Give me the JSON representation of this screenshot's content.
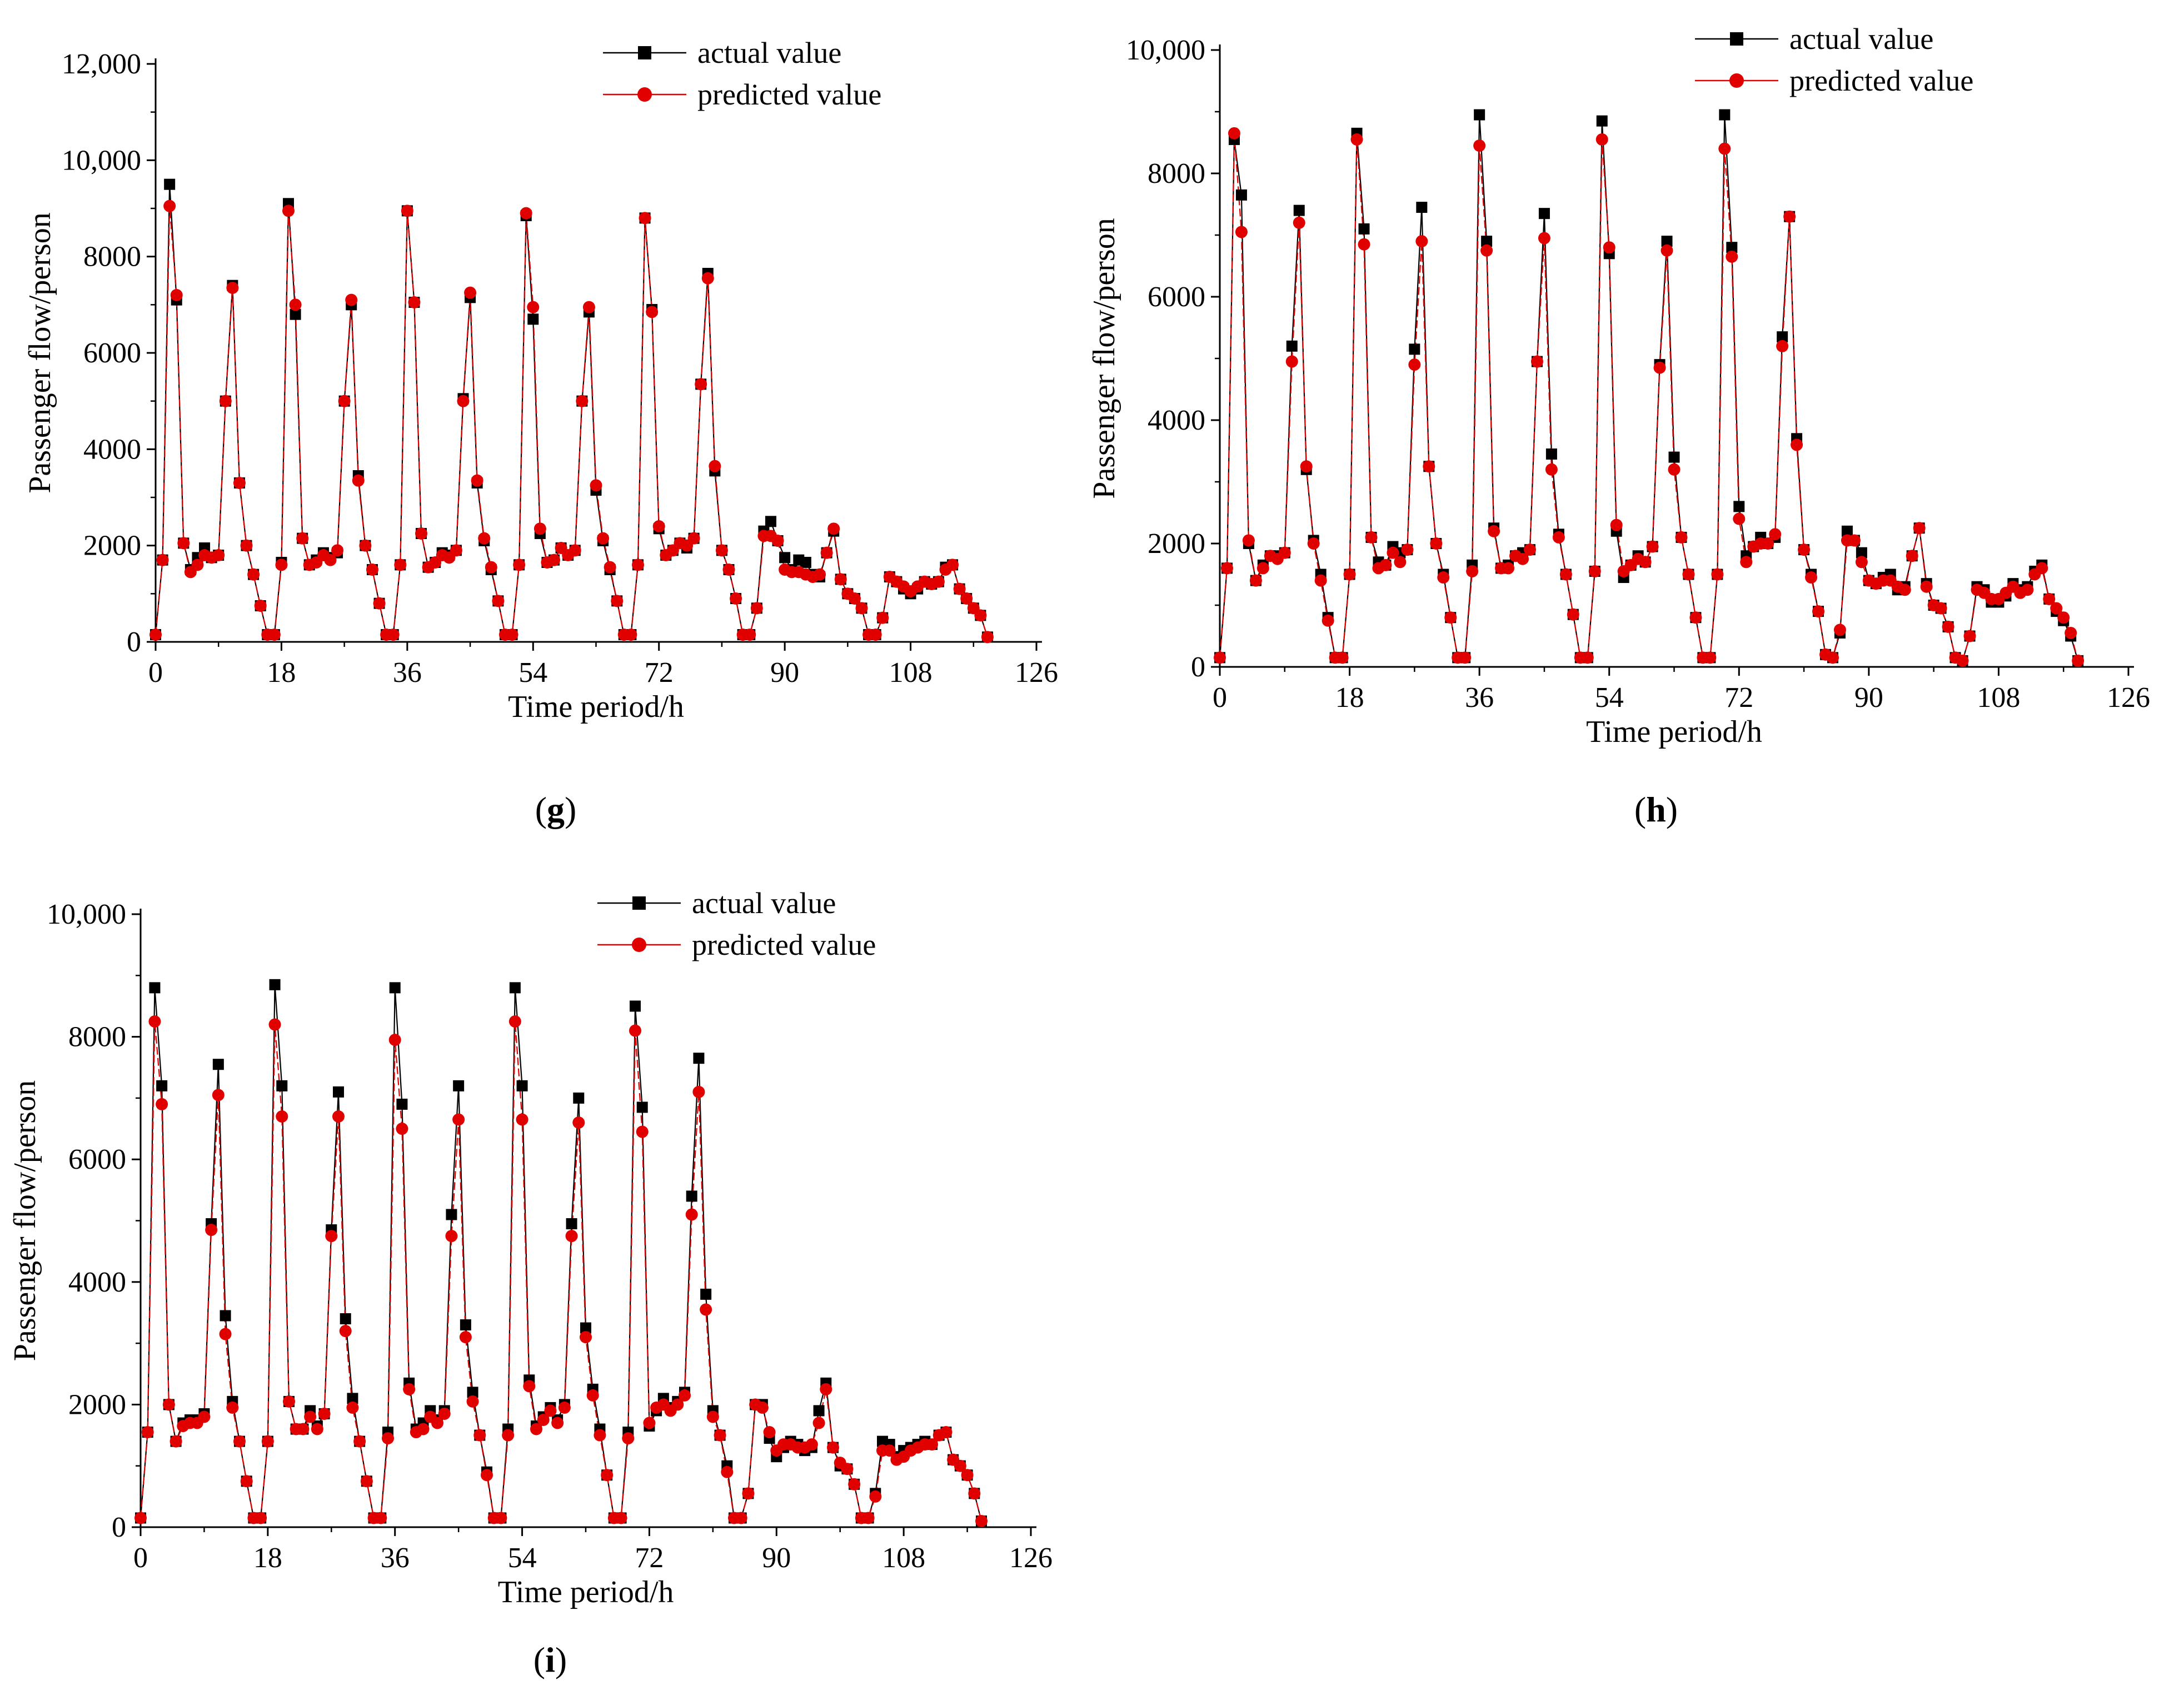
{
  "colors": {
    "actual": "#000000",
    "predicted": "#e00000",
    "axis": "#000000"
  },
  "chart_data": [
    {
      "id": "g",
      "panel_label": "g",
      "type": "line",
      "xlabel": "Time period/h",
      "ylabel": "Passenger flow/person",
      "xlim": [
        0,
        126
      ],
      "ylim": [
        0,
        12000
      ],
      "xticks": [
        0,
        18,
        36,
        54,
        72,
        90,
        108,
        126
      ],
      "xtick_labels": [
        "0",
        "18",
        "36",
        "54",
        "72",
        "90",
        "108",
        "126"
      ],
      "yticks": [
        0,
        2000,
        4000,
        6000,
        8000,
        10000,
        12000
      ],
      "ytick_labels": [
        "0",
        "2000",
        "4000",
        "6000",
        "8000",
        "10,000",
        "12,000"
      ],
      "legend": [
        "actual value",
        "predicted value"
      ],
      "legend_position": "top-right",
      "series": [
        {
          "name": "actual value",
          "marker": "square",
          "values": [
            150,
            1700,
            9500,
            7100,
            2050,
            1500,
            1750,
            1950,
            1750,
            1800,
            5000,
            7400,
            3300,
            2000,
            1400,
            750,
            150,
            150,
            1650,
            9100,
            6800,
            2150,
            1600,
            1700,
            1850,
            1750,
            1850,
            5000,
            7000,
            3450,
            2000,
            1500,
            800,
            150,
            150,
            1600,
            8950,
            7050,
            2250,
            1550,
            1650,
            1850,
            1800,
            1900,
            5050,
            7150,
            3300,
            2100,
            1500,
            850,
            150,
            150,
            1600,
            8850,
            6700,
            2250,
            1650,
            1700,
            1950,
            1800,
            1900,
            5000,
            6850,
            3150,
            2100,
            1500,
            850,
            150,
            150,
            1600,
            8800,
            6900,
            2350,
            1800,
            1900,
            2050,
            1950,
            2150,
            5350,
            7650,
            3550,
            1900,
            1500,
            900,
            150,
            150,
            700,
            2300,
            2500,
            2100,
            1750,
            1500,
            1700,
            1650,
            1400,
            1350,
            1850,
            2300,
            1300,
            1000,
            900,
            700,
            150,
            150,
            500,
            1350,
            1250,
            1100,
            1000,
            1100,
            1250,
            1200,
            1250,
            1550,
            1600,
            1100,
            900,
            700,
            550,
            100
          ]
        },
        {
          "name": "predicted value",
          "marker": "circle",
          "values": [
            150,
            1700,
            9050,
            7200,
            2050,
            1450,
            1600,
            1800,
            1750,
            1800,
            5000,
            7350,
            3300,
            2000,
            1400,
            750,
            150,
            150,
            1600,
            8950,
            7000,
            2150,
            1600,
            1650,
            1800,
            1700,
            1900,
            5000,
            7100,
            3350,
            2000,
            1500,
            800,
            150,
            150,
            1600,
            8950,
            7050,
            2250,
            1550,
            1650,
            1800,
            1750,
            1900,
            5000,
            7250,
            3350,
            2150,
            1550,
            850,
            150,
            150,
            1600,
            8900,
            6950,
            2350,
            1650,
            1700,
            1950,
            1800,
            1900,
            5000,
            6950,
            3250,
            2150,
            1550,
            850,
            150,
            150,
            1600,
            8800,
            6850,
            2400,
            1800,
            1900,
            2050,
            2000,
            2150,
            5350,
            7550,
            3650,
            1900,
            1500,
            900,
            150,
            150,
            700,
            2200,
            2200,
            2100,
            1500,
            1450,
            1450,
            1400,
            1350,
            1400,
            1850,
            2350,
            1300,
            1000,
            900,
            700,
            150,
            150,
            500,
            1350,
            1250,
            1150,
            1050,
            1150,
            1250,
            1200,
            1250,
            1500,
            1600,
            1100,
            900,
            700,
            550,
            100
          ]
        }
      ]
    },
    {
      "id": "h",
      "panel_label": "h",
      "type": "line",
      "xlabel": "Time period/h",
      "ylabel": "Passenger flow/person",
      "xlim": [
        0,
        126
      ],
      "ylim": [
        0,
        10000
      ],
      "xticks": [
        0,
        18,
        36,
        54,
        72,
        90,
        108,
        126
      ],
      "xtick_labels": [
        "0",
        "18",
        "36",
        "54",
        "72",
        "90",
        "108",
        "126"
      ],
      "yticks": [
        0,
        2000,
        4000,
        6000,
        8000,
        10000
      ],
      "ytick_labels": [
        "0",
        "2000",
        "4000",
        "6000",
        "8000",
        "10,000"
      ],
      "legend": [
        "actual value",
        "predicted value"
      ],
      "legend_position": "top-right",
      "series": [
        {
          "name": "actual value",
          "marker": "square",
          "values": [
            150,
            1600,
            8550,
            7650,
            2000,
            1400,
            1650,
            1800,
            1800,
            1850,
            5200,
            7400,
            3200,
            2050,
            1500,
            800,
            150,
            150,
            1500,
            8650,
            7100,
            2100,
            1700,
            1650,
            1950,
            1850,
            1900,
            5150,
            7450,
            3250,
            2000,
            1500,
            800,
            150,
            150,
            1650,
            8950,
            6900,
            2250,
            1600,
            1650,
            1800,
            1850,
            1900,
            4950,
            7350,
            3450,
            2150,
            1500,
            850,
            150,
            150,
            1550,
            8850,
            6700,
            2200,
            1450,
            1650,
            1800,
            1700,
            1950,
            4900,
            6900,
            3400,
            2100,
            1500,
            800,
            150,
            150,
            1500,
            8950,
            6800,
            2600,
            1800,
            1950,
            2100,
            2000,
            2100,
            5350,
            7300,
            3700,
            1900,
            1500,
            900,
            200,
            150,
            550,
            2200,
            2050,
            1850,
            1400,
            1350,
            1450,
            1500,
            1250,
            1300,
            1800,
            2250,
            1350,
            1000,
            950,
            650,
            150,
            100,
            500,
            1300,
            1250,
            1050,
            1050,
            1150,
            1350,
            1250,
            1300,
            1550,
            1650,
            1100,
            900,
            750,
            500,
            100
          ]
        },
        {
          "name": "predicted value",
          "marker": "circle",
          "values": [
            150,
            1600,
            8650,
            7050,
            2050,
            1400,
            1600,
            1800,
            1750,
            1850,
            4950,
            7200,
            3250,
            2000,
            1400,
            750,
            150,
            150,
            1500,
            8550,
            6850,
            2100,
            1600,
            1650,
            1850,
            1700,
            1900,
            4900,
            6900,
            3250,
            2000,
            1450,
            800,
            150,
            150,
            1550,
            8450,
            6750,
            2200,
            1600,
            1600,
            1800,
            1750,
            1900,
            4950,
            6950,
            3200,
            2100,
            1500,
            850,
            150,
            150,
            1550,
            8550,
            6800,
            2300,
            1550,
            1650,
            1750,
            1700,
            1950,
            4850,
            6750,
            3200,
            2100,
            1500,
            800,
            150,
            150,
            1500,
            8400,
            6650,
            2400,
            1700,
            1950,
            2000,
            2000,
            2150,
            5200,
            7300,
            3600,
            1900,
            1450,
            900,
            200,
            150,
            600,
            2050,
            2050,
            1700,
            1400,
            1350,
            1400,
            1400,
            1300,
            1250,
            1800,
            2250,
            1300,
            1000,
            950,
            650,
            150,
            100,
            500,
            1250,
            1200,
            1100,
            1100,
            1200,
            1300,
            1200,
            1250,
            1500,
            1600,
            1100,
            950,
            800,
            550,
            100
          ]
        }
      ]
    },
    {
      "id": "i",
      "panel_label": "i",
      "type": "line",
      "xlabel": "Time period/h",
      "ylabel": "Passenger flow/person",
      "xlim": [
        0,
        126
      ],
      "ylim": [
        0,
        10000
      ],
      "xticks": [
        0,
        18,
        36,
        54,
        72,
        90,
        108,
        126
      ],
      "xtick_labels": [
        "0",
        "18",
        "36",
        "54",
        "72",
        "90",
        "108",
        "126"
      ],
      "yticks": [
        0,
        2000,
        4000,
        6000,
        8000,
        10000
      ],
      "ytick_labels": [
        "0",
        "2000",
        "4000",
        "6000",
        "8000",
        "10,000"
      ],
      "legend": [
        "actual value",
        "predicted value"
      ],
      "legend_position": "top-right",
      "series": [
        {
          "name": "actual value",
          "marker": "square",
          "values": [
            150,
            1550,
            8800,
            7200,
            2000,
            1400,
            1700,
            1750,
            1750,
            1850,
            4950,
            7550,
            3450,
            2050,
            1400,
            750,
            150,
            150,
            1400,
            8850,
            7200,
            2050,
            1600,
            1600,
            1900,
            1650,
            1850,
            4850,
            7100,
            3400,
            2100,
            1400,
            750,
            150,
            150,
            1550,
            8800,
            6900,
            2350,
            1600,
            1700,
            1900,
            1750,
            1900,
            5100,
            7200,
            3300,
            2200,
            1500,
            900,
            150,
            150,
            1600,
            8800,
            7200,
            2400,
            1650,
            1800,
            1950,
            1750,
            2000,
            4950,
            7000,
            3250,
            2250,
            1600,
            850,
            150,
            150,
            1550,
            8500,
            6850,
            1650,
            1900,
            2100,
            1950,
            2050,
            2200,
            5400,
            7650,
            3800,
            1900,
            1500,
            1000,
            150,
            150,
            550,
            2000,
            2000,
            1450,
            1150,
            1300,
            1400,
            1350,
            1250,
            1300,
            1900,
            2350,
            1300,
            1000,
            950,
            700,
            150,
            150,
            550,
            1400,
            1350,
            1150,
            1250,
            1300,
            1350,
            1400,
            1350,
            1500,
            1550,
            1100,
            1000,
            850,
            550,
            100
          ]
        },
        {
          "name": "predicted value",
          "marker": "circle",
          "values": [
            150,
            1550,
            8250,
            6900,
            2000,
            1400,
            1650,
            1700,
            1700,
            1800,
            4850,
            7050,
            3150,
            1950,
            1400,
            750,
            150,
            150,
            1400,
            8200,
            6700,
            2050,
            1600,
            1600,
            1800,
            1600,
            1850,
            4750,
            6700,
            3200,
            1950,
            1400,
            750,
            150,
            150,
            1450,
            7950,
            6500,
            2250,
            1550,
            1600,
            1800,
            1700,
            1850,
            4750,
            6650,
            3100,
            2050,
            1500,
            850,
            150,
            150,
            1500,
            8250,
            6650,
            2300,
            1600,
            1750,
            1900,
            1700,
            1950,
            4750,
            6600,
            3100,
            2150,
            1500,
            850,
            150,
            150,
            1450,
            8100,
            6450,
            1700,
            1950,
            2000,
            1900,
            2000,
            2150,
            5100,
            7100,
            3550,
            1800,
            1500,
            900,
            150,
            150,
            550,
            2000,
            1950,
            1550,
            1250,
            1350,
            1350,
            1300,
            1300,
            1350,
            1700,
            2250,
            1300,
            1050,
            950,
            700,
            150,
            150,
            500,
            1250,
            1250,
            1100,
            1150,
            1250,
            1300,
            1350,
            1350,
            1500,
            1550,
            1100,
            1000,
            850,
            550,
            100
          ]
        }
      ]
    }
  ]
}
